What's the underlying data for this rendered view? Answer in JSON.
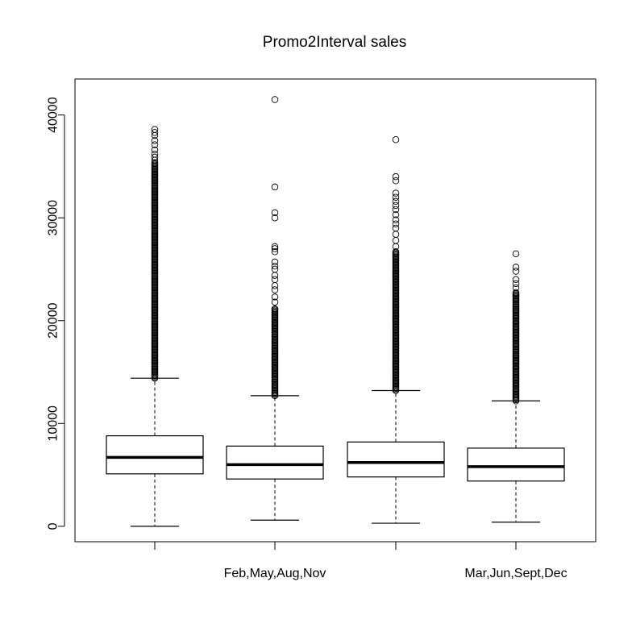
{
  "chart_data": {
    "type": "box",
    "title": "Promo2Interval sales",
    "xlabel": "",
    "ylabel": "",
    "ylim": [
      -1500,
      43500
    ],
    "yticks": [
      0,
      10000,
      20000,
      30000,
      40000
    ],
    "categories": [
      "",
      "Feb,May,Aug,Nov",
      "",
      "Mar,Jun,Sept,Dec"
    ],
    "boxes": [
      {
        "min": 0,
        "q1": 5100,
        "median": 6700,
        "q3": 8800,
        "max": 14400,
        "outlier_band": [
          14400,
          35400
        ],
        "outliers": [
          35600,
          35900,
          36200,
          36600,
          37100,
          37500,
          38000,
          38300,
          38600
        ]
      },
      {
        "min": 600,
        "q1": 4600,
        "median": 6000,
        "q3": 7800,
        "max": 12700,
        "outlier_band": [
          12700,
          21200
        ],
        "outliers": [
          21800,
          22300,
          23000,
          23400,
          24000,
          24400,
          25000,
          25300,
          25700,
          26700,
          27000,
          27200,
          30000,
          30500,
          33000,
          41500
        ]
      },
      {
        "min": 300,
        "q1": 4800,
        "median": 6200,
        "q3": 8200,
        "max": 13200,
        "outlier_band": [
          13200,
          26800
        ],
        "outliers": [
          27200,
          27800,
          28400,
          29000,
          29400,
          29800,
          30300,
          30800,
          31200,
          31600,
          32000,
          32400,
          33600,
          34000,
          37600
        ]
      },
      {
        "min": 400,
        "q1": 4400,
        "median": 5800,
        "q3": 7600,
        "max": 12200,
        "outlier_band": [
          12200,
          22800
        ],
        "outliers": [
          23200,
          23600,
          24000,
          24800,
          25200,
          26500
        ]
      }
    ]
  }
}
